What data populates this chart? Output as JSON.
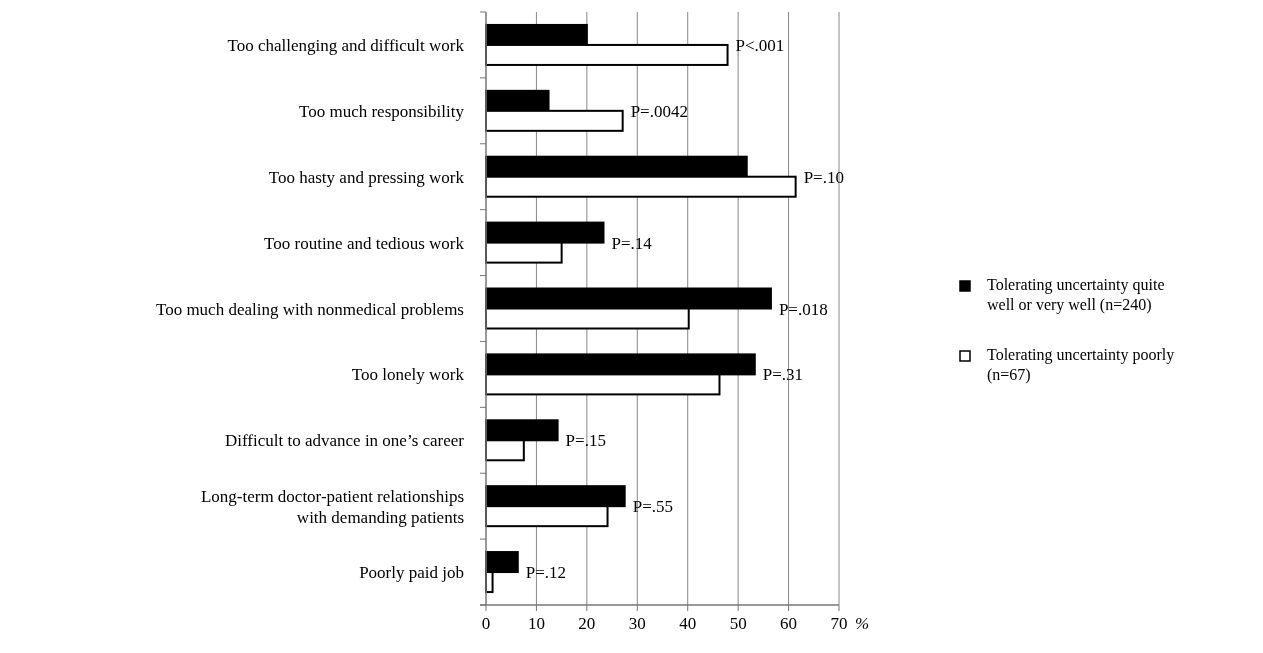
{
  "chart_data": {
    "type": "bar",
    "orientation": "horizontal",
    "categories": [
      "Too challenging and difficult work",
      "Too much responsibility",
      "Too hasty and pressing work",
      "Too routine and tedious work",
      "Too much dealing with nonmedical problems",
      "Too lonely work",
      "Difficult to advance in one’s career",
      "Long-term doctor-patient relationships with demanding patients",
      "Poorly paid job"
    ],
    "series": [
      {
        "name": "Tolerating uncertainty quite well or very well (n=240)",
        "color": "#000000",
        "values": [
          20,
          12.4,
          51.7,
          23.3,
          56.5,
          53.3,
          14.2,
          27.5,
          6.3
        ]
      },
      {
        "name": "Tolerating uncertainty poorly (n=67)",
        "color": "#ffffff",
        "values": [
          47.9,
          27.1,
          61.4,
          15,
          40.2,
          46.3,
          7.5,
          24.1,
          1.3
        ]
      }
    ],
    "xlim": [
      0,
      70
    ],
    "xticks": [
      0,
      10,
      20,
      30,
      40,
      50,
      60,
      70
    ],
    "xlabel": "%",
    "grid": "x",
    "legend": "right",
    "annotations": [
      {
        "text": "P<.001",
        "x": 47.9,
        "y": "Too challenging and difficult work"
      },
      {
        "text": "P=.0042",
        "x": 27.1,
        "y": "Too much responsibility"
      },
      {
        "text": "P=.10",
        "x": 61.4,
        "y": "Too hasty and pressing work"
      },
      {
        "text": "P=.14",
        "x": 23.3,
        "y": "Too routine and tedious work"
      },
      {
        "text": "P=.018",
        "x": 56.5,
        "y": "Too much dealing with nonmedical problems"
      },
      {
        "text": "P=.31",
        "x": 53.3,
        "y": "Too lonely work"
      },
      {
        "text": "P=.15",
        "x": 14.2,
        "y": "Difficult to advance in one’s career"
      },
      {
        "text": "P=.55",
        "x": 27.5,
        "y": "Long-term doctor-patient relationships with demanding patients"
      },
      {
        "text": "P=.12",
        "x": 6.3,
        "y": "Poorly paid job"
      }
    ]
  }
}
